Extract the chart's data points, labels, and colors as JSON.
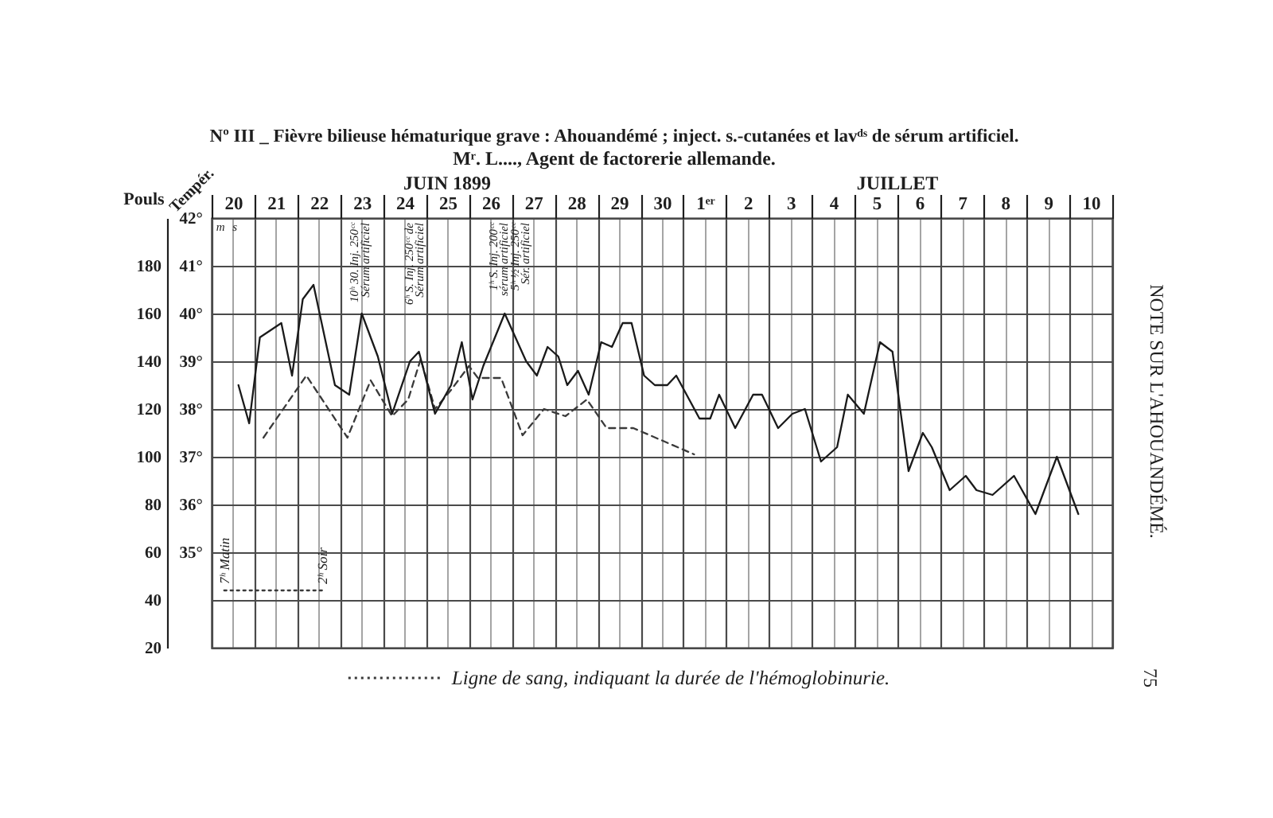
{
  "chart_data": {
    "type": "line",
    "title": "Nº III _ Fièvre bilieuse hématurique grave : Ahouandémé ; inject. s.-cutanées et lavᵈˢ de sérum artificiel.",
    "subtitle": "Mʳ. L...., Agent de factorerie allemande.",
    "ylabel": "Pouls",
    "y2label": "Tempér.",
    "xlim": [
      "1899-06-20",
      "1899-07-11"
    ],
    "xticks": [
      {
        "value": "1899-06-20",
        "label": null
      },
      {
        "value": "1899-06-20T12:00",
        "label": "20"
      },
      {
        "value": "1899-06-21",
        "label": null
      },
      {
        "value": "1899-06-21T12:00",
        "label": "21"
      },
      {
        "value": "1899-06-22",
        "label": null
      },
      {
        "value": "1899-06-22T12:00",
        "label": "22"
      },
      {
        "value": "1899-06-23",
        "label": null
      },
      {
        "value": "1899-06-23T12:00",
        "label": "23"
      },
      {
        "value": "1899-06-24",
        "label": null
      },
      {
        "value": "1899-06-24T12:00",
        "label": "24"
      },
      {
        "value": "1899-06-25",
        "label": null
      },
      {
        "value": "1899-06-25T12:00",
        "label": "25"
      },
      {
        "value": "1899-06-26",
        "label": null
      },
      {
        "value": "1899-06-26T12:00",
        "label": "26"
      },
      {
        "value": "1899-06-27",
        "label": null
      },
      {
        "value": "1899-06-27T12:00",
        "label": "27"
      },
      {
        "value": "1899-06-28",
        "label": null
      },
      {
        "value": "1899-06-28T12:00",
        "label": "28"
      },
      {
        "value": "1899-06-29",
        "label": null
      },
      {
        "value": "1899-06-29T12:00",
        "label": "29"
      },
      {
        "value": "1899-06-30",
        "label": null
      },
      {
        "value": "1899-06-30T12:00",
        "label": "30"
      },
      {
        "value": "1899-07-01",
        "label": null
      },
      {
        "value": "1899-07-01T12:00",
        "label": "1ᵉʳ"
      },
      {
        "value": "1899-07-02",
        "label": null
      },
      {
        "value": "1899-07-02T12:00",
        "label": "2"
      },
      {
        "value": "1899-07-03",
        "label": null
      },
      {
        "value": "1899-07-03T12:00",
        "label": "3"
      },
      {
        "value": "1899-07-04",
        "label": null
      },
      {
        "value": "1899-07-04T12:00",
        "label": "4"
      },
      {
        "value": "1899-07-05",
        "label": null
      },
      {
        "value": "1899-07-05T12:00",
        "label": "5"
      },
      {
        "value": "1899-07-06",
        "label": null
      },
      {
        "value": "1899-07-06T12:00",
        "label": "6"
      },
      {
        "value": "1899-07-07",
        "label": null
      },
      {
        "value": "1899-07-07T12:00",
        "label": "7"
      },
      {
        "value": "1899-07-08",
        "label": null
      },
      {
        "value": "1899-07-08T12:00",
        "label": "8"
      },
      {
        "value": "1899-07-09",
        "label": null
      },
      {
        "value": "1899-07-09T12:00",
        "label": "9"
      },
      {
        "value": "1899-07-10",
        "label": null
      },
      {
        "value": "1899-07-10T12:00",
        "label": "10"
      },
      {
        "value": "1899-07-11",
        "label": null
      }
    ],
    "ylim": [
      20,
      200
    ],
    "yticks": [
      20,
      40,
      60,
      80,
      100,
      120,
      140,
      160,
      180
    ],
    "y2lim": [
      33,
      42
    ],
    "y2ticks": [
      {
        "value": 35,
        "label": "35°"
      },
      {
        "value": 36,
        "label": "36°"
      },
      {
        "value": 37,
        "label": "37°"
      },
      {
        "value": 38,
        "label": "38°"
      },
      {
        "value": 39,
        "label": "39°"
      },
      {
        "value": 40,
        "label": "40°"
      },
      {
        "value": 41,
        "label": "41°"
      },
      {
        "value": 42,
        "label": "42°"
      }
    ],
    "grid": true,
    "legend": "bottom",
    "series": [
      {
        "axis": "y2",
        "color": "#1a1a1a",
        "line_style": "solid",
        "x": [
          "1899-06-20T15:00",
          "1899-06-20T21:00",
          "1899-06-21T03:00",
          "1899-06-21T15:00",
          "1899-06-21T21:00",
          "1899-06-22T03:00",
          "1899-06-22T09:00",
          "1899-06-22T21:00",
          "1899-06-23T05:00",
          "1899-06-23T12:00",
          "1899-06-23T21:00",
          "1899-06-24T05:00",
          "1899-06-24T15:00",
          "1899-06-24T20:00",
          "1899-06-25T05:00",
          "1899-06-25T14:00",
          "1899-06-25T20:00",
          "1899-06-26T02:00",
          "1899-06-26T08:00",
          "1899-06-26T20:00",
          "1899-06-27T08:00",
          "1899-06-27T14:00",
          "1899-06-27T20:00",
          "1899-06-28T02:00",
          "1899-06-28T07:00",
          "1899-06-28T13:00",
          "1899-06-28T19:00",
          "1899-06-29T02:00",
          "1899-06-29T08:00",
          "1899-06-29T14:00",
          "1899-06-29T19:00",
          "1899-06-30T02:00",
          "1899-06-30T08:00",
          "1899-06-30T15:00",
          "1899-06-30T20:00",
          "1899-07-01T09:00",
          "1899-07-01T15:00",
          "1899-07-01T20:00",
          "1899-07-02T05:00",
          "1899-07-02T15:00",
          "1899-07-02T20:00",
          "1899-07-03T05:00",
          "1899-07-03T13:00",
          "1899-07-03T20:00",
          "1899-07-04T05:00",
          "1899-07-04T14:00",
          "1899-07-04T20:00",
          "1899-07-05T05:00",
          "1899-07-05T14:00",
          "1899-07-05T21:00",
          "1899-07-06T06:00",
          "1899-07-06T14:00",
          "1899-07-06T19:00",
          "1899-07-07T05:00",
          "1899-07-07T14:00",
          "1899-07-07T20:00",
          "1899-07-08T05:00",
          "1899-07-08T17:00",
          "1899-07-09T05:00",
          "1899-07-09T17:00",
          "1899-07-10T05:00"
        ],
        "values": [
          38.5,
          37.7,
          39.5,
          39.8,
          38.7,
          40.3,
          40.6,
          38.5,
          38.3,
          40.0,
          39.1,
          37.9,
          39.0,
          39.2,
          37.9,
          38.5,
          39.4,
          38.2,
          38.9,
          40.0,
          39.0,
          38.7,
          39.3,
          39.1,
          38.5,
          38.8,
          38.3,
          39.4,
          39.3,
          39.8,
          39.8,
          38.7,
          38.5,
          38.5,
          38.7,
          37.8,
          37.8,
          38.3,
          37.6,
          38.3,
          38.3,
          37.6,
          37.9,
          38.0,
          36.9,
          37.2,
          38.3,
          37.9,
          39.4,
          39.2,
          36.7,
          37.5,
          37.2,
          36.3,
          36.6,
          36.3,
          36.2,
          36.6,
          35.8,
          37.0,
          35.8
        ]
      },
      {
        "axis": "y",
        "color": "#3a3a3a",
        "line_style": "dashed",
        "x": [
          "1899-06-21T05:00",
          "1899-06-22T05:00",
          "1899-06-23T04:00",
          "1899-06-23T17:00",
          "1899-06-24T05:00",
          "1899-06-24T14:00",
          "1899-06-24T21:00",
          "1899-06-25T05:00",
          "1899-06-25T14:00",
          "1899-06-26T00:00",
          "1899-06-26T05:00",
          "1899-06-26T18:00",
          "1899-06-27T06:00",
          "1899-06-27T18:00",
          "1899-06-28T06:00",
          "1899-06-28T18:00",
          "1899-06-29T05:00",
          "1899-06-29T20:00",
          "1899-07-01T06:00"
        ],
        "values": [
          108,
          134,
          108,
          132,
          117,
          124,
          141,
          120,
          128,
          138,
          133,
          133,
          109,
          120,
          117,
          124,
          112,
          112,
          101
        ]
      },
      {
        "name": "Ligne de sang, indiquant la durée de l'hémoglobinurie.",
        "axis": "y",
        "color": "#3a3a3a",
        "line_style": "dotted",
        "x": [
          "1899-06-20T07:00",
          "1899-06-22T14:00"
        ],
        "values": [
          44,
          44
        ]
      }
    ],
    "annotations": [
      "m",
      "s",
      "10ʰ 30. Inj. 250ᶜᶜ\nSérum artificiel",
      "6ʰ S. Inj. 250ᶜᶜ de\nSérum artificiel",
      "1ʰ S. Inj. 200ᶜᶜ\nsérum artificiel\n5ʰ ½ Inj. 250ᶜᶜ\nSér. artificiel",
      "JUIN 1899",
      "JUILLET",
      {
        "text": "7ʰ Matin",
        "x": "1899-06-20T07:00",
        "y": 44
      },
      {
        "text": "2ʰ Soir",
        "x": "1899-06-22T14:00",
        "y": 44
      },
      "NOTE SUR L'AHOUANDÉMÉ.",
      "75"
    ]
  }
}
